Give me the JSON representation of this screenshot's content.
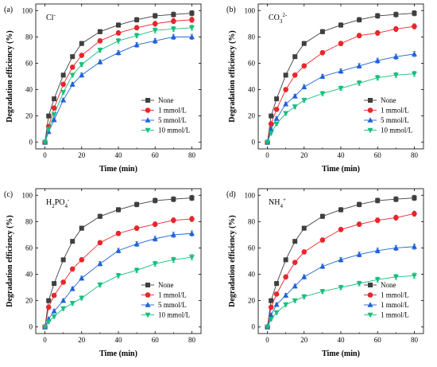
{
  "chart_data": [
    {
      "type": "line",
      "panel_label": "(a)",
      "ion": {
        "base": "Cl",
        "sub": "",
        "sup": "-"
      },
      "xlabel": "Time (min)",
      "ylabel": "Degradation efficiency (%)",
      "xlim": [
        -5,
        85
      ],
      "ylim": [
        -5,
        105
      ],
      "xticks": [
        0,
        20,
        40,
        60,
        80
      ],
      "yticks": [
        0,
        20,
        40,
        60,
        80,
        100
      ],
      "legend_position": "right-center",
      "x": [
        0,
        2,
        5,
        10,
        15,
        20,
        30,
        40,
        50,
        60,
        70,
        80
      ],
      "series": [
        {
          "name": "None",
          "marker": "square",
          "color": "#3f3f3f",
          "values": [
            0,
            20,
            33,
            51,
            65,
            75,
            84,
            89,
            93,
            96,
            97,
            98
          ]
        },
        {
          "name": "1 mmol/L",
          "marker": "circle",
          "color": "#e8262b",
          "values": [
            0,
            12,
            26,
            44,
            57,
            66,
            77,
            83,
            87,
            90,
            92,
            93
          ]
        },
        {
          "name": "5 mmol/L",
          "marker": "triangle-up",
          "color": "#1f63d8",
          "values": [
            0,
            8,
            17,
            32,
            44,
            51,
            61,
            68,
            74,
            77,
            80,
            80
          ]
        },
        {
          "name": "10 mmol/L",
          "marker": "triangle-down",
          "color": "#16c07c",
          "values": [
            0,
            10,
            21,
            38,
            51,
            59,
            70,
            77,
            81,
            85,
            86,
            87
          ]
        }
      ]
    },
    {
      "type": "line",
      "panel_label": "(b)",
      "ion": {
        "base": "CO",
        "sub": "3",
        "sup": "2-"
      },
      "xlabel": "Time (min)",
      "ylabel": "Degradation efficiency (%)",
      "xlim": [
        -5,
        85
      ],
      "ylim": [
        -5,
        105
      ],
      "xticks": [
        0,
        20,
        40,
        60,
        80
      ],
      "yticks": [
        0,
        20,
        40,
        60,
        80,
        100
      ],
      "legend_position": "right-center",
      "x": [
        0,
        2,
        5,
        10,
        15,
        20,
        30,
        40,
        50,
        60,
        70,
        80
      ],
      "series": [
        {
          "name": "None",
          "marker": "square",
          "color": "#3f3f3f",
          "values": [
            0,
            20,
            33,
            51,
            65,
            75,
            84,
            89,
            93,
            96,
            97,
            98
          ]
        },
        {
          "name": "1 mmol/L",
          "marker": "circle",
          "color": "#e8262b",
          "values": [
            0,
            14,
            25,
            40,
            51,
            58,
            68,
            75,
            81,
            83,
            86,
            88
          ]
        },
        {
          "name": "5 mmol/L",
          "marker": "triangle-up",
          "color": "#1f63d8",
          "values": [
            0,
            10,
            18,
            29,
            35,
            42,
            50,
            54,
            58,
            62,
            65,
            67
          ]
        },
        {
          "name": "10 mmol/L",
          "marker": "triangle-down",
          "color": "#16c07c",
          "values": [
            0,
            7,
            14,
            22,
            27,
            32,
            37,
            41,
            45,
            49,
            51,
            52
          ]
        }
      ]
    },
    {
      "type": "line",
      "panel_label": "(c)",
      "ion": {
        "base": "H",
        "sub": "2",
        "mid": "PO",
        "sub2": "4",
        "sup": "-"
      },
      "xlabel": "Time (min)",
      "ylabel": "Degradation efficiency (%)",
      "xlim": [
        -5,
        85
      ],
      "ylim": [
        -5,
        105
      ],
      "xticks": [
        0,
        20,
        40,
        60,
        80
      ],
      "yticks": [
        0,
        20,
        40,
        60,
        80,
        100
      ],
      "legend_position": "right-bottom",
      "x": [
        0,
        2,
        5,
        10,
        15,
        20,
        30,
        40,
        50,
        60,
        70,
        80
      ],
      "series": [
        {
          "name": "None",
          "marker": "square",
          "color": "#3f3f3f",
          "values": [
            0,
            20,
            33,
            51,
            65,
            75,
            84,
            89,
            93,
            96,
            97,
            98
          ]
        },
        {
          "name": "1 mmol/L",
          "marker": "circle",
          "color": "#e8262b",
          "values": [
            0,
            15,
            24,
            34,
            44,
            51,
            64,
            71,
            75,
            78,
            81,
            82
          ]
        },
        {
          "name": "5 mmol/L",
          "marker": "triangle-up",
          "color": "#1f63d8",
          "values": [
            0,
            6,
            12,
            20,
            29,
            37,
            48,
            58,
            63,
            67,
            70,
            71
          ]
        },
        {
          "name": "10 mmol/L",
          "marker": "triangle-down",
          "color": "#16c07c",
          "values": [
            0,
            4,
            8,
            14,
            18,
            22,
            32,
            39,
            43,
            48,
            51,
            53
          ]
        }
      ]
    },
    {
      "type": "line",
      "panel_label": "(d)",
      "ion": {
        "base": "NH",
        "sub": "4",
        "sup": "+"
      },
      "xlabel": "Time (min)",
      "ylabel": "Degradation efficiency (%)",
      "xlim": [
        -5,
        85
      ],
      "ylim": [
        -5,
        105
      ],
      "xticks": [
        0,
        20,
        40,
        60,
        80
      ],
      "yticks": [
        0,
        20,
        40,
        60,
        80,
        100
      ],
      "legend_position": "right-bottom",
      "x": [
        0,
        2,
        5,
        10,
        15,
        20,
        30,
        40,
        50,
        60,
        70,
        80
      ],
      "series": [
        {
          "name": "None",
          "marker": "square",
          "color": "#3f3f3f",
          "values": [
            0,
            20,
            33,
            51,
            65,
            75,
            84,
            89,
            93,
            96,
            97,
            98
          ]
        },
        {
          "name": "1 mmol/L",
          "marker": "circle",
          "color": "#e8262b",
          "values": [
            0,
            15,
            25,
            38,
            49,
            57,
            66,
            74,
            78,
            81,
            83,
            86
          ]
        },
        {
          "name": "1 mmol/L",
          "marker": "triangle-up",
          "color": "#1f63d8",
          "values": [
            0,
            9,
            17,
            24,
            31,
            38,
            46,
            51,
            55,
            58,
            60,
            61
          ]
        },
        {
          "name": "1 mmol/L",
          "marker": "triangle-down",
          "color": "#16c07c",
          "values": [
            0,
            6,
            11,
            17,
            20,
            23,
            27,
            30,
            33,
            36,
            38,
            39
          ]
        }
      ]
    }
  ]
}
